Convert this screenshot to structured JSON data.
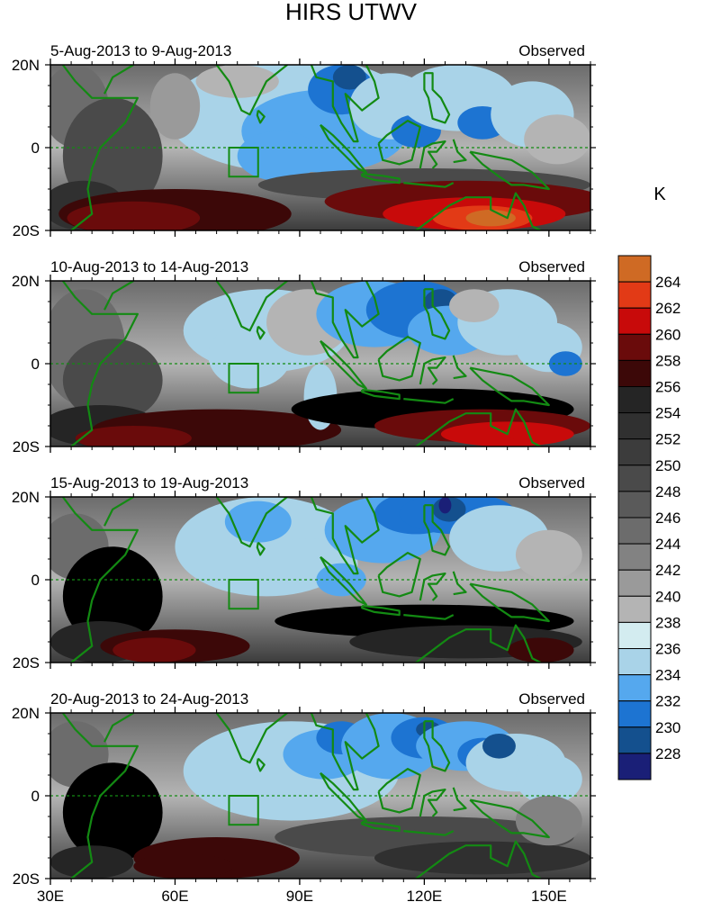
{
  "chart_data": {
    "type": "heatmap",
    "title": "HIRS UTWV",
    "colorbar": {
      "unit": "K",
      "levels": [
        228,
        230,
        232,
        234,
        236,
        238,
        240,
        242,
        244,
        246,
        248,
        250,
        252,
        254,
        256,
        258,
        260,
        262,
        264
      ],
      "colors": [
        "#1a1f77",
        "#14508e",
        "#1d74d2",
        "#55a8ee",
        "#a9d3e8",
        "#d3ecf0",
        "#b4b4b4",
        "#9a9a9a",
        "#828282",
        "#6c6c6c",
        "#5a5a5a",
        "#4a4a4a",
        "#3c3c3c",
        "#303030",
        "#252525",
        "#3c0808",
        "#6a0b0b",
        "#c80a0a",
        "#e23a16",
        "#cf6a24"
      ]
    },
    "x_ticks": [
      "30E",
      "60E",
      "90E",
      "120E",
      "150E"
    ],
    "x_tick_values": [
      30,
      60,
      90,
      120,
      150
    ],
    "y_ticks": [
      "20N",
      "0",
      "20S"
    ],
    "y_tick_values": [
      20,
      0,
      -20
    ],
    "xlim": [
      30,
      160
    ],
    "ylim": [
      -20,
      20
    ],
    "panels": [
      {
        "title": "5-Aug-2013 to 9-Aug-2013",
        "label": "Observed"
      },
      {
        "title": "10-Aug-2013 to 14-Aug-2013",
        "label": "Observed"
      },
      {
        "title": "15-Aug-2013 to 19-Aug-2013",
        "label": "Observed"
      },
      {
        "title": "20-Aug-2013 to 24-Aug-2013",
        "label": "Observed"
      }
    ],
    "colors": {
      "coastline": "#138a13",
      "equator": "#138a13"
    }
  }
}
